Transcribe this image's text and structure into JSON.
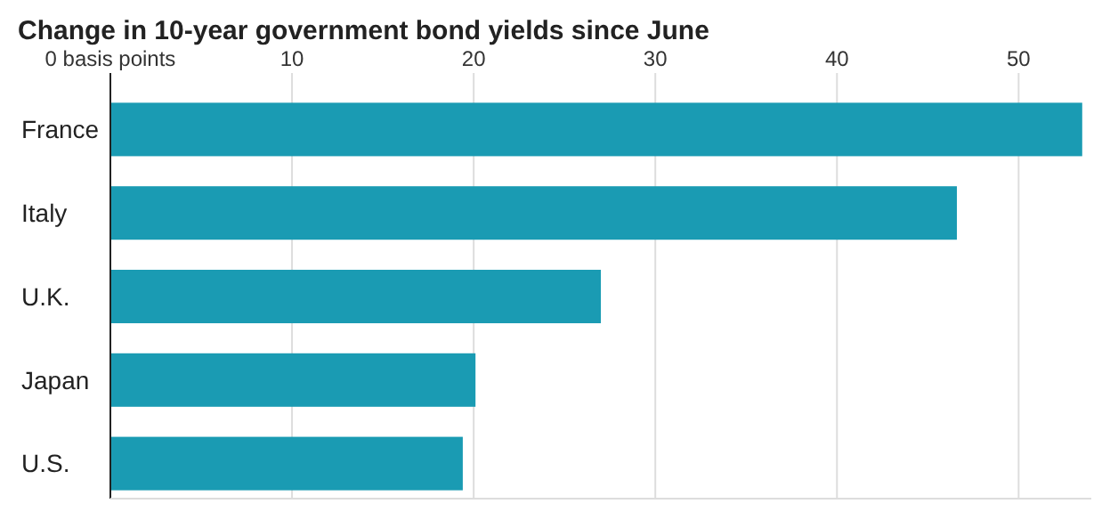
{
  "chart_data": {
    "type": "bar",
    "orientation": "horizontal",
    "title": "Change in 10-year government bond yields since June",
    "categories": [
      "France",
      "Italy",
      "U.K.",
      "Japan",
      "U.S."
    ],
    "values": [
      53.5,
      46.6,
      27.0,
      20.1,
      19.4
    ],
    "color": "#1a9bb3",
    "xlim": [
      0,
      54
    ],
    "xticks": [
      {
        "value": 0,
        "label": "0 basis points"
      },
      10,
      20,
      30,
      40,
      50
    ],
    "grid": "x"
  }
}
